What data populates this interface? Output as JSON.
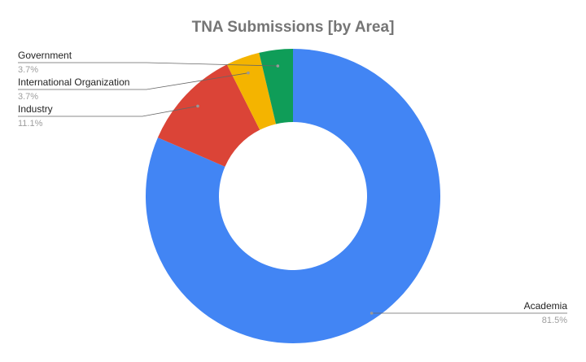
{
  "chart_data": {
    "type": "donut",
    "title": "TNA Submissions [by Area]",
    "categories": [
      "Academia",
      "Industry",
      "International Organization",
      "Government"
    ],
    "values": [
      81.5,
      11.1,
      3.7,
      3.7
    ],
    "value_labels": [
      "81.5%",
      "11.1%",
      "3.7%",
      "3.7%"
    ],
    "colors": [
      "#4285f4",
      "#db4437",
      "#f4b400",
      "#0f9d58"
    ]
  }
}
